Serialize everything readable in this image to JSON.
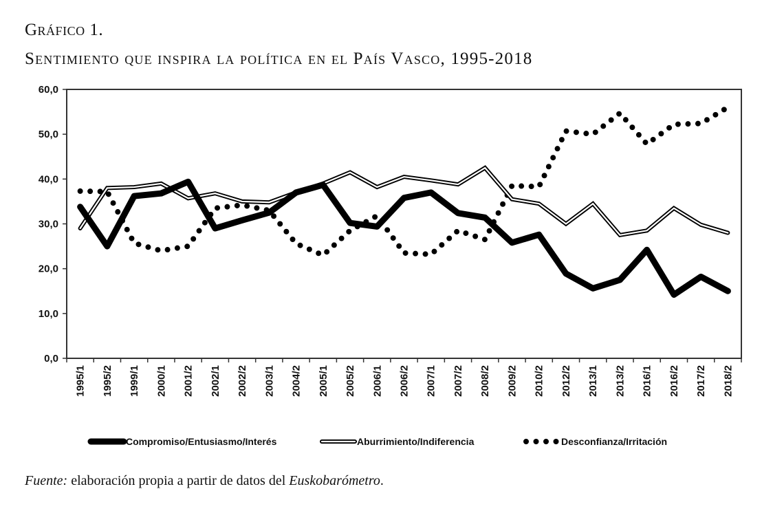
{
  "figure": {
    "label": "Gráfico 1.",
    "title": "Sentimiento que inspira la política en el País Vasco, 1995-2018",
    "source_prefix": "Fuente:",
    "source_text": " elaboración propia a partir de datos del ",
    "source_italic": "Euskobarómetro",
    "source_suffix": "."
  },
  "chart_data": {
    "type": "line",
    "title": "Sentimiento que inspira la política en el País Vasco, 1995-2018",
    "xlabel": "",
    "ylabel": "",
    "ylim": [
      0,
      60
    ],
    "yticks": [
      "0,0",
      "10,0",
      "20,0",
      "30,0",
      "40,0",
      "50,0",
      "60,0"
    ],
    "grid": false,
    "legend_position": "bottom",
    "categories": [
      "1995/1",
      "1995/2",
      "1999/1",
      "2000/1",
      "2001/2",
      "2002/1",
      "2002/2",
      "2003/1",
      "2004/2",
      "2005/1",
      "2005/2",
      "2006/1",
      "2006/2",
      "2007/1",
      "2007/2",
      "2008/2",
      "2009/2",
      "2010/2",
      "2012/2",
      "2013/1",
      "2013/2",
      "2016/1",
      "2016/2",
      "2017/2",
      "2018/2"
    ],
    "series": [
      {
        "name": "Compromiso/Entusiasmo/Interés",
        "style": "thick",
        "values": [
          33.8,
          25.0,
          36.2,
          36.8,
          39.4,
          29.0,
          30.8,
          32.5,
          37.0,
          38.7,
          30.2,
          29.4,
          35.8,
          37.0,
          32.4,
          31.4,
          25.8,
          27.6,
          18.9,
          15.6,
          17.5,
          24.2,
          14.2,
          18.2,
          15.0
        ]
      },
      {
        "name": "Aburrimiento/Indiferencia",
        "style": "double",
        "values": [
          29.0,
          38.0,
          38.2,
          39.0,
          35.7,
          36.8,
          35.0,
          34.8,
          37.0,
          39.0,
          41.5,
          38.2,
          40.5,
          39.7,
          38.8,
          42.5,
          35.5,
          34.5,
          30.0,
          34.5,
          27.5,
          28.5,
          33.5,
          29.8,
          28.0
        ]
      },
      {
        "name": "Desconfianza/Irritación",
        "style": "dotted",
        "values": [
          37.3,
          37.2,
          25.7,
          24.0,
          25.0,
          33.5,
          34.2,
          33.0,
          25.6,
          23.0,
          28.5,
          31.8,
          23.5,
          23.2,
          28.5,
          26.5,
          38.5,
          38.3,
          50.7,
          50.0,
          54.7,
          47.8,
          52.2,
          52.4,
          56.0
        ]
      }
    ]
  }
}
